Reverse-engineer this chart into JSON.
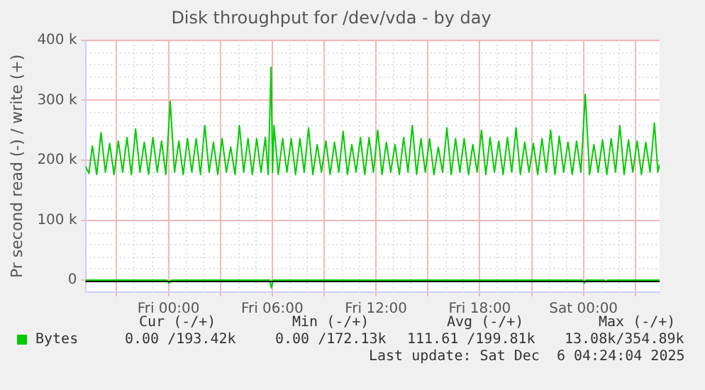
{
  "chart_data": {
    "type": "line",
    "title": "Disk throughput for /dev/vda - by day",
    "ylabel": "Pr second read (-) / write (+)",
    "xlim": [
      "2025-12-04T19:12",
      "2025-12-06T04:24"
    ],
    "xticks": [
      {
        "value": "2025-12-04T21:00",
        "label": null
      },
      {
        "value": "2025-12-05T00:00",
        "label": "Fri 00:00"
      },
      {
        "value": "2025-12-05T03:00",
        "label": null
      },
      {
        "value": "2025-12-05T06:00",
        "label": "Fri 06:00"
      },
      {
        "value": "2025-12-05T09:00",
        "label": null
      },
      {
        "value": "2025-12-05T12:00",
        "label": "Fri 12:00"
      },
      {
        "value": "2025-12-05T15:00",
        "label": null
      },
      {
        "value": "2025-12-05T18:00",
        "label": "Fri 18:00"
      },
      {
        "value": "2025-12-05T21:00",
        "label": null
      },
      {
        "value": "2025-12-06T00:00",
        "label": "Sat 00:00"
      },
      {
        "value": "2025-12-06T03:00",
        "label": null
      }
    ],
    "ylim": [
      -20000,
      400000
    ],
    "yticks": [
      {
        "value": 0,
        "label": "0"
      },
      {
        "value": 100000,
        "label": "100 k"
      },
      {
        "value": 200000,
        "label": "200 k"
      },
      {
        "value": 300000,
        "label": "300 k"
      },
      {
        "value": 400000,
        "label": "400 k"
      }
    ],
    "grid": true,
    "legend": "bottom",
    "marker": "none",
    "line_style": "solid",
    "ref_lines": [
      {
        "axis": "y",
        "value": 0,
        "color": "#000000"
      }
    ],
    "series": [
      {
        "color": "#00cc00",
        "x": [
          "2025-12-04T19:12",
          "2025-12-04T23:54",
          "2025-12-05T00:02",
          "2025-12-05T00:12",
          "2025-12-05T05:51",
          "2025-12-05T05:57",
          "2025-12-05T06:03",
          "2025-12-05T23:57",
          "2025-12-06T00:03",
          "2025-12-06T00:09",
          "2025-12-06T01:12",
          "2025-12-06T01:18",
          "2025-12-06T01:24",
          "2025-12-06T04:24"
        ],
        "values": [
          0,
          0,
          -5000,
          0,
          0,
          -13000,
          0,
          0,
          -5000,
          0,
          0,
          -3000,
          0,
          0
        ]
      },
      {
        "name": "Bytes",
        "color": "#00cc00",
        "x": [
          "2025-12-04T19:12",
          "2025-12-04T19:24",
          "2025-12-04T19:36",
          "2025-12-04T19:51",
          "2025-12-04T20:06",
          "2025-12-04T20:21",
          "2025-12-04T20:36",
          "2025-12-04T20:51",
          "2025-12-04T21:06",
          "2025-12-04T21:21",
          "2025-12-04T21:36",
          "2025-12-04T21:51",
          "2025-12-04T22:06",
          "2025-12-04T22:21",
          "2025-12-04T22:36",
          "2025-12-04T22:51",
          "2025-12-04T23:06",
          "2025-12-04T23:21",
          "2025-12-04T23:36",
          "2025-12-04T23:51",
          "2025-12-05T00:06",
          "2025-12-05T00:21",
          "2025-12-05T00:36",
          "2025-12-05T00:51",
          "2025-12-05T01:06",
          "2025-12-05T01:21",
          "2025-12-05T01:36",
          "2025-12-05T01:51",
          "2025-12-05T02:06",
          "2025-12-05T02:21",
          "2025-12-05T02:36",
          "2025-12-05T02:51",
          "2025-12-05T03:06",
          "2025-12-05T03:21",
          "2025-12-05T03:36",
          "2025-12-05T03:51",
          "2025-12-05T04:06",
          "2025-12-05T04:21",
          "2025-12-05T04:36",
          "2025-12-05T04:51",
          "2025-12-05T05:06",
          "2025-12-05T05:21",
          "2025-12-05T05:36",
          "2025-12-05T05:46",
          "2025-12-05T05:56",
          "2025-12-05T06:01",
          "2025-12-05T06:06",
          "2025-12-05T06:21",
          "2025-12-05T06:36",
          "2025-12-05T06:51",
          "2025-12-05T07:06",
          "2025-12-05T07:21",
          "2025-12-05T07:36",
          "2025-12-05T07:51",
          "2025-12-05T08:06",
          "2025-12-05T08:21",
          "2025-12-05T08:36",
          "2025-12-05T08:51",
          "2025-12-05T09:06",
          "2025-12-05T09:21",
          "2025-12-05T09:36",
          "2025-12-05T09:51",
          "2025-12-05T10:06",
          "2025-12-05T10:21",
          "2025-12-05T10:36",
          "2025-12-05T10:51",
          "2025-12-05T11:06",
          "2025-12-05T11:21",
          "2025-12-05T11:36",
          "2025-12-05T11:51",
          "2025-12-05T12:06",
          "2025-12-05T12:21",
          "2025-12-05T12:36",
          "2025-12-05T12:51",
          "2025-12-05T13:06",
          "2025-12-05T13:21",
          "2025-12-05T13:36",
          "2025-12-05T13:51",
          "2025-12-05T14:06",
          "2025-12-05T14:21",
          "2025-12-05T14:36",
          "2025-12-05T14:51",
          "2025-12-05T15:06",
          "2025-12-05T15:21",
          "2025-12-05T15:36",
          "2025-12-05T15:51",
          "2025-12-05T16:06",
          "2025-12-05T16:21",
          "2025-12-05T16:36",
          "2025-12-05T16:51",
          "2025-12-05T17:06",
          "2025-12-05T17:21",
          "2025-12-05T17:36",
          "2025-12-05T17:51",
          "2025-12-05T18:06",
          "2025-12-05T18:21",
          "2025-12-05T18:36",
          "2025-12-05T18:51",
          "2025-12-05T19:06",
          "2025-12-05T19:21",
          "2025-12-05T19:36",
          "2025-12-05T19:51",
          "2025-12-05T20:06",
          "2025-12-05T20:21",
          "2025-12-05T20:36",
          "2025-12-05T20:51",
          "2025-12-05T21:06",
          "2025-12-05T21:21",
          "2025-12-05T21:36",
          "2025-12-05T21:51",
          "2025-12-05T22:06",
          "2025-12-05T22:21",
          "2025-12-05T22:36",
          "2025-12-05T22:51",
          "2025-12-05T23:06",
          "2025-12-05T23:21",
          "2025-12-05T23:36",
          "2025-12-05T23:51",
          "2025-12-06T00:06",
          "2025-12-06T00:21",
          "2025-12-06T00:36",
          "2025-12-06T00:51",
          "2025-12-06T01:06",
          "2025-12-06T01:21",
          "2025-12-06T01:36",
          "2025-12-06T01:51",
          "2025-12-06T02:06",
          "2025-12-06T02:21",
          "2025-12-06T02:36",
          "2025-12-06T02:51",
          "2025-12-06T03:06",
          "2025-12-06T03:21",
          "2025-12-06T03:36",
          "2025-12-06T03:51",
          "2025-12-06T04:06",
          "2025-12-06T04:18",
          "2025-12-06T04:24"
        ],
        "values": [
          190000,
          178000,
          224000,
          176000,
          246000,
          180000,
          228000,
          176000,
          232000,
          180000,
          238000,
          176000,
          252000,
          180000,
          230000,
          176000,
          238000,
          180000,
          232000,
          176000,
          298000,
          180000,
          232000,
          176000,
          236000,
          180000,
          236000,
          176000,
          258000,
          180000,
          230000,
          176000,
          236000,
          180000,
          222000,
          176000,
          258000,
          180000,
          236000,
          176000,
          236000,
          180000,
          238000,
          176000,
          355000,
          180000,
          258000,
          176000,
          236000,
          180000,
          236000,
          176000,
          236000,
          180000,
          254000,
          176000,
          226000,
          180000,
          232000,
          176000,
          230000,
          180000,
          248000,
          176000,
          226000,
          180000,
          238000,
          176000,
          238000,
          180000,
          250000,
          176000,
          230000,
          180000,
          226000,
          176000,
          238000,
          180000,
          258000,
          176000,
          236000,
          180000,
          236000,
          176000,
          222000,
          180000,
          254000,
          176000,
          236000,
          180000,
          236000,
          176000,
          226000,
          180000,
          250000,
          176000,
          238000,
          180000,
          232000,
          176000,
          238000,
          180000,
          254000,
          176000,
          230000,
          180000,
          228000,
          176000,
          236000,
          180000,
          250000,
          176000,
          240000,
          180000,
          230000,
          176000,
          232000,
          180000,
          310000,
          176000,
          226000,
          180000,
          234000,
          176000,
          236000,
          180000,
          258000,
          176000,
          234000,
          180000,
          232000,
          176000,
          230000,
          180000,
          262000,
          180000,
          193000
        ]
      }
    ],
    "annotations": [
      "Cur (-/+)",
      "Min (-/+)",
      "Avg (-/+)",
      "Max (-/+)",
      "0.00 /193.42k",
      "0.00 /172.13k",
      "111.61 /199.81k",
      "13.08k/354.89k",
      "Last update: Sat Dec  6 04:24:04 2025"
    ]
  }
}
